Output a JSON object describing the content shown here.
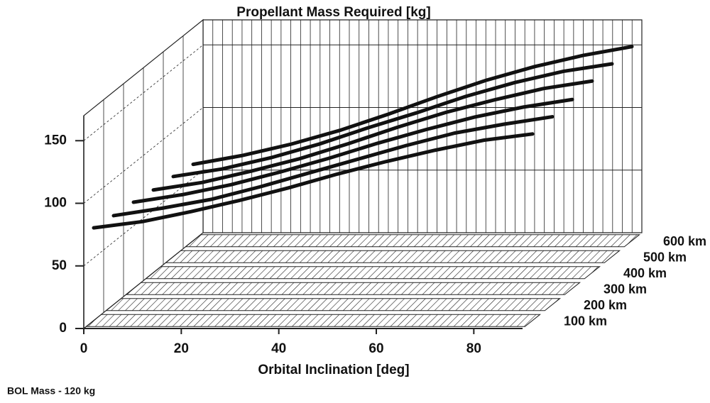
{
  "chart_data": {
    "type": "line3d",
    "title": "Propellant Mass Required [kg]",
    "x_label": "Orbital Inclination [deg]",
    "note": "BOL Mass - 120 kg",
    "x": [
      0,
      10,
      20,
      30,
      40,
      50,
      60,
      70,
      80,
      90
    ],
    "series": [
      {
        "name": "100 km",
        "color": "#111111",
        "values": [
          74,
          79,
          87,
          96,
          106,
          117,
          127,
          136,
          144,
          149
        ]
      },
      {
        "name": "200 km",
        "color": "#111111",
        "values": [
          71,
          77,
          84,
          94,
          105,
          116,
          127,
          137,
          144,
          150
        ]
      },
      {
        "name": "300 km",
        "color": "#111111",
        "values": [
          69,
          75,
          83,
          93,
          104,
          116,
          127,
          137,
          145,
          151
        ]
      },
      {
        "name": "400 km",
        "color": "#111111",
        "values": [
          66,
          72,
          81,
          91,
          103,
          116,
          128,
          138,
          147,
          153
        ]
      },
      {
        "name": "500 km",
        "color": "#111111",
        "values": [
          64,
          70,
          79,
          90,
          103,
          115,
          128,
          139,
          148,
          154
        ]
      },
      {
        "name": "600 km",
        "color": "#111111",
        "values": [
          61,
          68,
          77,
          88,
          101,
          115,
          128,
          139,
          148,
          155
        ]
      }
    ],
    "xlim": [
      0,
      90
    ],
    "xticks": [
      0,
      20,
      40,
      60,
      80
    ],
    "ylim": [
      0,
      170
    ],
    "yticks": [
      0,
      50,
      100,
      150
    ],
    "grid": true
  }
}
